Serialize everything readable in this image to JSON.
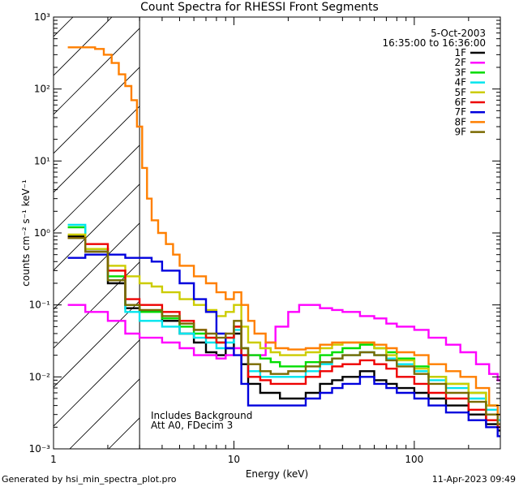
{
  "page": {
    "footer_left": "Generated by hsi_min_spectra_plot.pro",
    "footer_right": "11-Apr-2023 09:49"
  },
  "chart_data": {
    "type": "line",
    "title": "Count Spectra for RHESSI Front Segments",
    "xlabel": "Energy (keV)",
    "ylabel": "counts cm⁻² s⁻¹ keV⁻¹",
    "xscale": "log",
    "yscale": "log",
    "xlim": [
      1,
      300
    ],
    "ylim": [
      0.001,
      1000
    ],
    "x_tick_labels": [
      {
        "value": 1,
        "label": "1"
      },
      {
        "value": 10,
        "label": "10"
      },
      {
        "value": 100,
        "label": "100"
      }
    ],
    "y_tick_labels": [
      {
        "value": 0.001,
        "label": "10⁻³"
      },
      {
        "value": 0.01,
        "label": "10⁻²"
      },
      {
        "value": 0.1,
        "label": "10⁻¹"
      },
      {
        "value": 1,
        "label": "10⁰"
      },
      {
        "value": 10,
        "label": "10¹"
      },
      {
        "value": 100,
        "label": "10²"
      },
      {
        "value": 1000,
        "label": "10³"
      }
    ],
    "date_text": "5-Oct-2003",
    "time_text": "16:35:00 to 16:36:00",
    "annotations": [
      "Includes Background",
      "Att A0, FDecim 3"
    ],
    "hatched_region_kev": [
      1,
      3
    ],
    "legend_position": "top-right",
    "series": [
      {
        "name": "1F",
        "color": "#000000",
        "points": [
          [
            1.2,
            0.9
          ],
          [
            1.5,
            0.55
          ],
          [
            2,
            0.2
          ],
          [
            2.5,
            0.09
          ],
          [
            3,
            0.08
          ],
          [
            4,
            0.06
          ],
          [
            5,
            0.04
          ],
          [
            6,
            0.03
          ],
          [
            7,
            0.022
          ],
          [
            8,
            0.02
          ],
          [
            9,
            0.025
          ],
          [
            10,
            0.04
          ],
          [
            11,
            0.015
          ],
          [
            12,
            0.008
          ],
          [
            14,
            0.006
          ],
          [
            16,
            0.006
          ],
          [
            18,
            0.005
          ],
          [
            20,
            0.005
          ],
          [
            25,
            0.006
          ],
          [
            30,
            0.008
          ],
          [
            35,
            0.009
          ],
          [
            40,
            0.01
          ],
          [
            50,
            0.012
          ],
          [
            60,
            0.009
          ],
          [
            70,
            0.008
          ],
          [
            80,
            0.007
          ],
          [
            100,
            0.006
          ],
          [
            120,
            0.005
          ],
          [
            150,
            0.004
          ],
          [
            200,
            0.003
          ],
          [
            250,
            0.0022
          ],
          [
            290,
            0.0018
          ]
        ]
      },
      {
        "name": "2F",
        "color": "#ff00ff",
        "points": [
          [
            1.2,
            0.1
          ],
          [
            1.5,
            0.08
          ],
          [
            2,
            0.06
          ],
          [
            2.5,
            0.04
          ],
          [
            3,
            0.035
          ],
          [
            4,
            0.03
          ],
          [
            5,
            0.025
          ],
          [
            6,
            0.02
          ],
          [
            7,
            0.02
          ],
          [
            8,
            0.018
          ],
          [
            9,
            0.02
          ],
          [
            10,
            0.025
          ],
          [
            11,
            0.02
          ],
          [
            12,
            0.02
          ],
          [
            13,
            0.02
          ],
          [
            15,
            0.03
          ],
          [
            17,
            0.05
          ],
          [
            20,
            0.08
          ],
          [
            23,
            0.1
          ],
          [
            26,
            0.1
          ],
          [
            30,
            0.09
          ],
          [
            35,
            0.085
          ],
          [
            40,
            0.08
          ],
          [
            50,
            0.07
          ],
          [
            60,
            0.065
          ],
          [
            70,
            0.055
          ],
          [
            80,
            0.05
          ],
          [
            100,
            0.045
          ],
          [
            120,
            0.035
          ],
          [
            150,
            0.028
          ],
          [
            180,
            0.022
          ],
          [
            220,
            0.015
          ],
          [
            260,
            0.011
          ],
          [
            290,
            0.009
          ]
        ]
      },
      {
        "name": "3F",
        "color": "#00dd00",
        "points": [
          [
            1.2,
            1.2
          ],
          [
            1.5,
            0.6
          ],
          [
            2,
            0.25
          ],
          [
            2.5,
            0.1
          ],
          [
            3,
            0.08
          ],
          [
            4,
            0.065
          ],
          [
            5,
            0.05
          ],
          [
            6,
            0.04
          ],
          [
            7,
            0.035
          ],
          [
            8,
            0.03
          ],
          [
            9,
            0.035
          ],
          [
            10,
            0.05
          ],
          [
            11,
            0.025
          ],
          [
            12,
            0.02
          ],
          [
            14,
            0.018
          ],
          [
            16,
            0.016
          ],
          [
            18,
            0.014
          ],
          [
            20,
            0.014
          ],
          [
            25,
            0.016
          ],
          [
            30,
            0.02
          ],
          [
            35,
            0.022
          ],
          [
            40,
            0.025
          ],
          [
            50,
            0.028
          ],
          [
            60,
            0.025
          ],
          [
            70,
            0.022
          ],
          [
            80,
            0.018
          ],
          [
            100,
            0.014
          ],
          [
            120,
            0.01
          ],
          [
            150,
            0.008
          ],
          [
            200,
            0.006
          ],
          [
            250,
            0.004
          ],
          [
            290,
            0.003
          ]
        ]
      },
      {
        "name": "4F",
        "color": "#00e5ee",
        "points": [
          [
            1.2,
            1.3
          ],
          [
            1.5,
            0.6
          ],
          [
            2,
            0.22
          ],
          [
            2.5,
            0.08
          ],
          [
            3,
            0.06
          ],
          [
            4,
            0.05
          ],
          [
            5,
            0.04
          ],
          [
            6,
            0.035
          ],
          [
            7,
            0.03
          ],
          [
            8,
            0.025
          ],
          [
            9,
            0.03
          ],
          [
            10,
            0.045
          ],
          [
            11,
            0.02
          ],
          [
            12,
            0.012
          ],
          [
            14,
            0.01
          ],
          [
            16,
            0.01
          ],
          [
            18,
            0.01
          ],
          [
            20,
            0.01
          ],
          [
            25,
            0.012
          ],
          [
            30,
            0.015
          ],
          [
            35,
            0.018
          ],
          [
            40,
            0.02
          ],
          [
            50,
            0.022
          ],
          [
            60,
            0.02
          ],
          [
            70,
            0.018
          ],
          [
            80,
            0.015
          ],
          [
            100,
            0.012
          ],
          [
            120,
            0.009
          ],
          [
            150,
            0.007
          ],
          [
            200,
            0.005
          ],
          [
            250,
            0.0035
          ],
          [
            290,
            0.0025
          ]
        ]
      },
      {
        "name": "5F",
        "color": "#cccc00",
        "points": [
          [
            1.2,
            0.95
          ],
          [
            1.5,
            0.6
          ],
          [
            2,
            0.35
          ],
          [
            2.5,
            0.25
          ],
          [
            3,
            0.2
          ],
          [
            3.5,
            0.18
          ],
          [
            4,
            0.15
          ],
          [
            5,
            0.12
          ],
          [
            6,
            0.1
          ],
          [
            7,
            0.085
          ],
          [
            8,
            0.07
          ],
          [
            9,
            0.08
          ],
          [
            10,
            0.1
          ],
          [
            11,
            0.05
          ],
          [
            12,
            0.03
          ],
          [
            14,
            0.025
          ],
          [
            16,
            0.022
          ],
          [
            18,
            0.02
          ],
          [
            20,
            0.02
          ],
          [
            25,
            0.022
          ],
          [
            30,
            0.025
          ],
          [
            35,
            0.028
          ],
          [
            40,
            0.03
          ],
          [
            50,
            0.03
          ],
          [
            60,
            0.025
          ],
          [
            70,
            0.02
          ],
          [
            80,
            0.017
          ],
          [
            100,
            0.013
          ],
          [
            120,
            0.01
          ],
          [
            150,
            0.008
          ],
          [
            200,
            0.006
          ],
          [
            250,
            0.004
          ],
          [
            290,
            0.003
          ]
        ]
      },
      {
        "name": "6F",
        "color": "#ee0000",
        "points": [
          [
            1.2,
            0.85
          ],
          [
            1.5,
            0.7
          ],
          [
            2,
            0.3
          ],
          [
            2.5,
            0.12
          ],
          [
            3,
            0.1
          ],
          [
            4,
            0.08
          ],
          [
            5,
            0.06
          ],
          [
            6,
            0.045
          ],
          [
            7,
            0.035
          ],
          [
            8,
            0.03
          ],
          [
            9,
            0.035
          ],
          [
            10,
            0.05
          ],
          [
            11,
            0.02
          ],
          [
            12,
            0.01
          ],
          [
            14,
            0.009
          ],
          [
            16,
            0.008
          ],
          [
            18,
            0.008
          ],
          [
            20,
            0.008
          ],
          [
            25,
            0.01
          ],
          [
            30,
            0.012
          ],
          [
            35,
            0.014
          ],
          [
            40,
            0.015
          ],
          [
            50,
            0.017
          ],
          [
            60,
            0.015
          ],
          [
            70,
            0.013
          ],
          [
            80,
            0.01
          ],
          [
            100,
            0.008
          ],
          [
            120,
            0.006
          ],
          [
            150,
            0.005
          ],
          [
            200,
            0.0035
          ],
          [
            250,
            0.0025
          ],
          [
            290,
            0.002
          ]
        ]
      },
      {
        "name": "7F",
        "color": "#0000dd",
        "points": [
          [
            1.2,
            0.45
          ],
          [
            1.5,
            0.5
          ],
          [
            2,
            0.5
          ],
          [
            2.5,
            0.45
          ],
          [
            3,
            0.45
          ],
          [
            3.5,
            0.4
          ],
          [
            4,
            0.3
          ],
          [
            5,
            0.2
          ],
          [
            6,
            0.12
          ],
          [
            7,
            0.08
          ],
          [
            8,
            0.04
          ],
          [
            9,
            0.025
          ],
          [
            10,
            0.02
          ],
          [
            11,
            0.008
          ],
          [
            12,
            0.004
          ],
          [
            14,
            0.004
          ],
          [
            16,
            0.004
          ],
          [
            18,
            0.004
          ],
          [
            20,
            0.004
          ],
          [
            25,
            0.005
          ],
          [
            30,
            0.006
          ],
          [
            35,
            0.007
          ],
          [
            40,
            0.008
          ],
          [
            50,
            0.01
          ],
          [
            60,
            0.008
          ],
          [
            70,
            0.007
          ],
          [
            80,
            0.006
          ],
          [
            100,
            0.005
          ],
          [
            120,
            0.004
          ],
          [
            150,
            0.0032
          ],
          [
            200,
            0.0025
          ],
          [
            250,
            0.002
          ],
          [
            290,
            0.0015
          ]
        ]
      },
      {
        "name": "8F",
        "color": "#ff7f00",
        "points": [
          [
            1.2,
            380
          ],
          [
            1.5,
            380
          ],
          [
            1.7,
            360
          ],
          [
            1.9,
            300
          ],
          [
            2.1,
            230
          ],
          [
            2.3,
            160
          ],
          [
            2.5,
            110
          ],
          [
            2.7,
            70
          ],
          [
            2.9,
            30
          ],
          [
            3.1,
            8
          ],
          [
            3.3,
            3
          ],
          [
            3.5,
            1.5
          ],
          [
            3.8,
            1
          ],
          [
            4.2,
            0.7
          ],
          [
            4.6,
            0.5
          ],
          [
            5,
            0.35
          ],
          [
            6,
            0.25
          ],
          [
            7,
            0.2
          ],
          [
            8,
            0.15
          ],
          [
            9,
            0.12
          ],
          [
            10,
            0.15
          ],
          [
            11,
            0.1
          ],
          [
            12,
            0.06
          ],
          [
            13,
            0.04
          ],
          [
            15,
            0.03
          ],
          [
            17,
            0.025
          ],
          [
            20,
            0.024
          ],
          [
            25,
            0.025
          ],
          [
            30,
            0.028
          ],
          [
            35,
            0.03
          ],
          [
            40,
            0.03
          ],
          [
            50,
            0.03
          ],
          [
            60,
            0.028
          ],
          [
            70,
            0.025
          ],
          [
            80,
            0.022
          ],
          [
            100,
            0.02
          ],
          [
            120,
            0.015
          ],
          [
            150,
            0.012
          ],
          [
            180,
            0.01
          ],
          [
            220,
            0.007
          ],
          [
            260,
            0.004
          ],
          [
            290,
            0.003
          ]
        ]
      },
      {
        "name": "9F",
        "color": "#7a6a00",
        "points": [
          [
            1.2,
            0.85
          ],
          [
            1.5,
            0.55
          ],
          [
            2,
            0.22
          ],
          [
            2.5,
            0.1
          ],
          [
            3,
            0.085
          ],
          [
            4,
            0.07
          ],
          [
            5,
            0.055
          ],
          [
            6,
            0.045
          ],
          [
            7,
            0.04
          ],
          [
            8,
            0.035
          ],
          [
            9,
            0.04
          ],
          [
            10,
            0.06
          ],
          [
            11,
            0.025
          ],
          [
            12,
            0.015
          ],
          [
            14,
            0.012
          ],
          [
            16,
            0.011
          ],
          [
            18,
            0.011
          ],
          [
            20,
            0.012
          ],
          [
            25,
            0.014
          ],
          [
            30,
            0.016
          ],
          [
            35,
            0.018
          ],
          [
            40,
            0.02
          ],
          [
            50,
            0.022
          ],
          [
            60,
            0.02
          ],
          [
            70,
            0.017
          ],
          [
            80,
            0.014
          ],
          [
            100,
            0.011
          ],
          [
            120,
            0.008
          ],
          [
            150,
            0.006
          ],
          [
            200,
            0.0045
          ],
          [
            250,
            0.003
          ],
          [
            290,
            0.0022
          ]
        ]
      }
    ]
  }
}
